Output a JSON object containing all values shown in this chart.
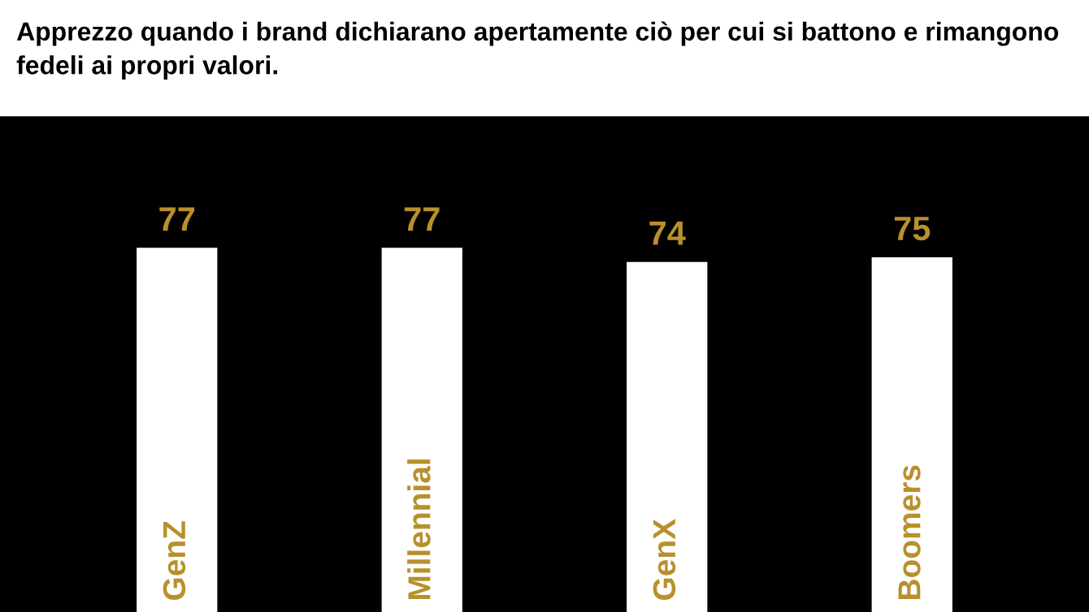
{
  "chart_data": {
    "type": "bar",
    "title": "Apprezzo quando i brand dichiarano apertamente ciò per cui si battono e rimangono fedeli ai propri valori.",
    "categories": [
      "GenZ",
      "Millennial",
      "GenX",
      "Boomers"
    ],
    "values": [
      77,
      77,
      74,
      75
    ],
    "color": "#ffffff",
    "data_labels": true
  }
}
